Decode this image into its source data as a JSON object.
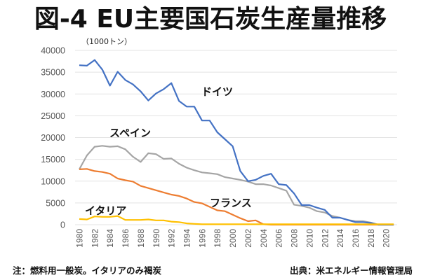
{
  "chart_data": {
    "type": "line",
    "title": "図-4 EU主要国石炭生産量推移",
    "ylabel": "（1000トン）",
    "xlabel": "",
    "ylim": [
      0,
      40000
    ],
    "yticks": [
      0,
      5000,
      10000,
      15000,
      20000,
      25000,
      30000,
      35000,
      40000
    ],
    "xlim": [
      1980,
      2021
    ],
    "xticks": [
      1980,
      1982,
      1984,
      1986,
      1988,
      1990,
      1992,
      1994,
      1996,
      1998,
      2000,
      2002,
      2004,
      2006,
      2008,
      2010,
      2012,
      2014,
      2016,
      2018,
      2020
    ],
    "grid": true,
    "legend": "none (inline labels)",
    "x": [
      1980,
      1981,
      1982,
      1983,
      1984,
      1985,
      1986,
      1987,
      1988,
      1989,
      1990,
      1991,
      1992,
      1993,
      1994,
      1995,
      1996,
      1997,
      1998,
      1999,
      2000,
      2001,
      2002,
      2003,
      2004,
      2005,
      2006,
      2007,
      2008,
      2009,
      2010,
      2011,
      2012,
      2013,
      2014,
      2015,
      2016,
      2017,
      2018,
      2019,
      2020,
      2021
    ],
    "series": [
      {
        "name": "ドイツ",
        "color": "#4472C4",
        "values": [
          36600,
          36500,
          37800,
          35600,
          31900,
          35100,
          33200,
          32200,
          30600,
          28500,
          30100,
          31100,
          32500,
          28400,
          27100,
          27100,
          23900,
          23900,
          21200,
          19600,
          18000,
          12300,
          10000,
          10300,
          11200,
          11700,
          9300,
          9100,
          7200,
          4500,
          4500,
          3900,
          3400,
          1600,
          1600,
          1100,
          600,
          600,
          400,
          0,
          0,
          0
        ]
      },
      {
        "name": "スペイン",
        "color": "#A5A5A5",
        "values": [
          12700,
          15900,
          17900,
          18100,
          17900,
          18000,
          17300,
          15600,
          14400,
          16400,
          16200,
          15100,
          15200,
          14000,
          13100,
          12500,
          12000,
          11800,
          11600,
          10900,
          10600,
          10300,
          9900,
          9300,
          9300,
          9000,
          8400,
          7800,
          4600,
          4300,
          3900,
          3100,
          2800,
          2000,
          1600,
          1100,
          800,
          800,
          500,
          0,
          0,
          0
        ]
      },
      {
        "name": "フランス",
        "color": "#ED7D31",
        "values": [
          12700,
          12800,
          12300,
          12100,
          11700,
          10600,
          10200,
          9900,
          8900,
          8400,
          7900,
          7400,
          6900,
          6600,
          6000,
          5200,
          4900,
          4100,
          3300,
          3100,
          2300,
          1500,
          800,
          1000,
          100,
          0,
          0,
          0,
          0,
          0,
          0,
          0,
          0,
          0,
          0,
          0,
          0,
          0,
          0,
          0,
          0,
          0
        ]
      },
      {
        "name": "イタリア",
        "color": "#FFC000",
        "values": [
          1300,
          1200,
          1900,
          1800,
          1800,
          2000,
          1100,
          1100,
          1100,
          1200,
          1000,
          1000,
          700,
          600,
          300,
          200,
          100,
          100,
          100,
          100,
          100,
          100,
          100,
          100,
          100,
          100,
          100,
          100,
          100,
          100,
          100,
          100,
          100,
          100,
          100,
          100,
          100,
          100,
          100,
          100,
          100,
          100
        ]
      }
    ]
  },
  "footer": {
    "note": "注：燃料用一般炭。イタリアのみ褐炭",
    "source": "出典：米エネルギー情報管理局"
  }
}
